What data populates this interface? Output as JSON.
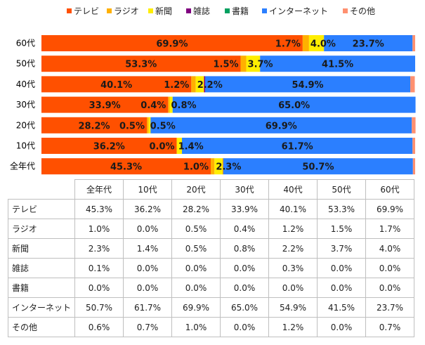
{
  "chart_data": {
    "type": "bar",
    "orientation": "horizontal",
    "stacked": "percent",
    "categories": [
      "60代",
      "50代",
      "40代",
      "30代",
      "20代",
      "10代",
      "全年代"
    ],
    "series": [
      {
        "name": "テレビ",
        "color": "#ff5000",
        "values": [
          69.9,
          53.3,
          40.1,
          33.9,
          28.2,
          36.2,
          45.3
        ]
      },
      {
        "name": "ラジオ",
        "color": "#ffb000",
        "values": [
          1.7,
          1.5,
          1.2,
          0.4,
          0.5,
          0.0,
          1.0
        ]
      },
      {
        "name": "新聞",
        "color": "#ffee00",
        "values": [
          4.0,
          3.7,
          2.2,
          0.8,
          0.5,
          1.4,
          2.3
        ]
      },
      {
        "name": "雑誌",
        "color": "#800080",
        "values": [
          0.0,
          0.0,
          0.3,
          0.0,
          0.0,
          0.0,
          0.1
        ]
      },
      {
        "name": "書籍",
        "color": "#00a060",
        "values": [
          0.0,
          0.0,
          0.0,
          0.0,
          0.0,
          0.0,
          0.0
        ]
      },
      {
        "name": "インターネット",
        "color": "#2b7fff",
        "values": [
          23.7,
          41.5,
          54.9,
          65.0,
          69.9,
          61.7,
          50.7
        ]
      },
      {
        "name": "その他",
        "color": "#ff9070",
        "values": [
          0.7,
          0.0,
          1.2,
          0.0,
          1.0,
          0.7,
          0.6
        ]
      }
    ],
    "data_labels": [
      [
        {
          "s": 0,
          "text": "69.9%"
        },
        {
          "s": 1,
          "text": "1.7%"
        },
        {
          "s": 2,
          "text": "4.0%"
        },
        {
          "s": 5,
          "text": "23.7%"
        }
      ],
      [
        {
          "s": 0,
          "text": "53.3%"
        },
        {
          "s": 1,
          "text": "1.5%"
        },
        {
          "s": 2,
          "text": "3.7%"
        },
        {
          "s": 5,
          "text": "41.5%"
        }
      ],
      [
        {
          "s": 0,
          "text": "40.1%"
        },
        {
          "s": 1,
          "text": "1.2%"
        },
        {
          "s": 2,
          "text": "2.2%"
        },
        {
          "s": 5,
          "text": "54.9%"
        }
      ],
      [
        {
          "s": 0,
          "text": "33.9%"
        },
        {
          "s": 1,
          "text": "0.4%"
        },
        {
          "s": 2,
          "text": "0.8%"
        },
        {
          "s": 5,
          "text": "65.0%"
        }
      ],
      [
        {
          "s": 0,
          "text": "28.2%"
        },
        {
          "s": 1,
          "text": "0.5%"
        },
        {
          "s": 2,
          "text": "0.5%"
        },
        {
          "s": 5,
          "text": "69.9%"
        }
      ],
      [
        {
          "s": 0,
          "text": "36.2%"
        },
        {
          "s": 1,
          "text": "0.0%"
        },
        {
          "s": 2,
          "text": "1.4%"
        },
        {
          "s": 5,
          "text": "61.7%"
        }
      ],
      [
        {
          "s": 0,
          "text": "45.3%"
        },
        {
          "s": 1,
          "text": "1.0%"
        },
        {
          "s": 2,
          "text": "2.3%"
        },
        {
          "s": 5,
          "text": "50.7%"
        }
      ]
    ],
    "legend_position": "top",
    "xlim": [
      0,
      100
    ],
    "grid": false
  },
  "table": {
    "columns": [
      "全年代",
      "10代",
      "20代",
      "30代",
      "40代",
      "50代",
      "60代"
    ],
    "rows": [
      {
        "label": "テレビ",
        "cells": [
          "45.3%",
          "36.2%",
          "28.2%",
          "33.9%",
          "40.1%",
          "53.3%",
          "69.9%"
        ]
      },
      {
        "label": "ラジオ",
        "cells": [
          "1.0%",
          "0.0%",
          "0.5%",
          "0.4%",
          "1.2%",
          "1.5%",
          "1.7%"
        ]
      },
      {
        "label": "新聞",
        "cells": [
          "2.3%",
          "1.4%",
          "0.5%",
          "0.8%",
          "2.2%",
          "3.7%",
          "4.0%"
        ]
      },
      {
        "label": "雑誌",
        "cells": [
          "0.1%",
          "0.0%",
          "0.0%",
          "0.0%",
          "0.3%",
          "0.0%",
          "0.0%"
        ]
      },
      {
        "label": "書籍",
        "cells": [
          "0.0%",
          "0.0%",
          "0.0%",
          "0.0%",
          "0.0%",
          "0.0%",
          "0.0%"
        ]
      },
      {
        "label": "インターネット",
        "cells": [
          "50.7%",
          "61.7%",
          "69.9%",
          "65.0%",
          "54.9%",
          "41.5%",
          "23.7%"
        ]
      },
      {
        "label": "その他",
        "cells": [
          "0.6%",
          "0.7%",
          "1.0%",
          "0.0%",
          "1.2%",
          "0.0%",
          "0.7%"
        ]
      }
    ]
  }
}
